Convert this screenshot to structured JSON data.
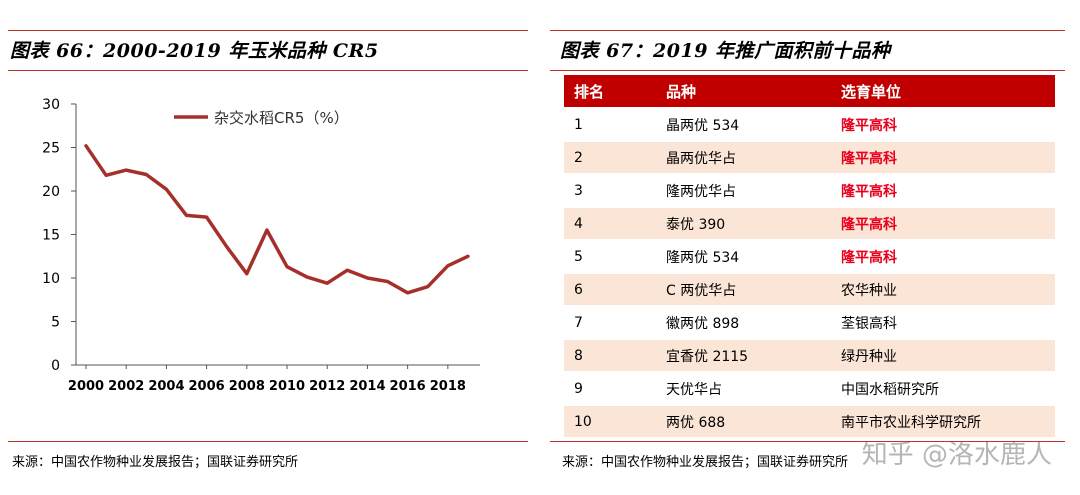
{
  "left": {
    "title": "图表 66：2000-2019 年玉米品种 CR5",
    "source": "来源：中国农作物种业发展报告；国联证券研究所"
  },
  "right": {
    "title": "图表 67：2019 年推广面积前十品种",
    "source": "来源：中国农作物种业发展报告；国联证券研究所",
    "watermark": "知乎 @洛水鹿人",
    "headers": [
      "排名",
      "品种",
      "选育单位"
    ],
    "rows": [
      {
        "rank": "1",
        "variety": "晶两优 534",
        "breeder": "隆平高科"
      },
      {
        "rank": "2",
        "variety": "晶两优华占",
        "breeder": "隆平高科"
      },
      {
        "rank": "3",
        "variety": "隆两优华占",
        "breeder": "隆平高科"
      },
      {
        "rank": "4",
        "variety": "泰优 390",
        "breeder": "隆平高科"
      },
      {
        "rank": "5",
        "variety": "隆两优 534",
        "breeder": "隆平高科"
      },
      {
        "rank": "6",
        "variety": "C 两优华占",
        "breeder": "农华种业"
      },
      {
        "rank": "7",
        "variety": "徽两优 898",
        "breeder": "荃银高科"
      },
      {
        "rank": "8",
        "variety": "宜香优 2115",
        "breeder": "绿丹种业"
      },
      {
        "rank": "9",
        "variety": "天优华占",
        "breeder": "中国水稻研究所"
      },
      {
        "rank": "10",
        "variety": "两优 688",
        "breeder": "南平市农业科学研究所"
      }
    ],
    "highlight_color": "#e8001c",
    "header_color": "#c00000",
    "stripe_color": "#fbe5d6"
  },
  "chart_data": {
    "type": "line",
    "title": "",
    "xlabel": "",
    "ylabel": "",
    "ylim": [
      0,
      30
    ],
    "yticks": [
      0,
      5,
      10,
      15,
      20,
      25,
      30
    ],
    "xticks": [
      2000,
      2002,
      2004,
      2006,
      2008,
      2010,
      2012,
      2014,
      2016,
      2018
    ],
    "grid": false,
    "legend_position": "top",
    "series": [
      {
        "name": "杂交水稻CR5（%）",
        "color": "#a5302b",
        "x": [
          2000,
          2001,
          2002,
          2003,
          2004,
          2005,
          2006,
          2007,
          2008,
          2009,
          2010,
          2011,
          2012,
          2013,
          2014,
          2015,
          2016,
          2017,
          2018,
          2019
        ],
        "y": [
          25.2,
          21.8,
          22.4,
          21.9,
          20.2,
          17.2,
          17.0,
          13.6,
          10.5,
          15.5,
          11.3,
          10.1,
          9.4,
          10.9,
          10.0,
          9.6,
          8.3,
          9.0,
          11.4,
          12.5
        ]
      }
    ]
  }
}
